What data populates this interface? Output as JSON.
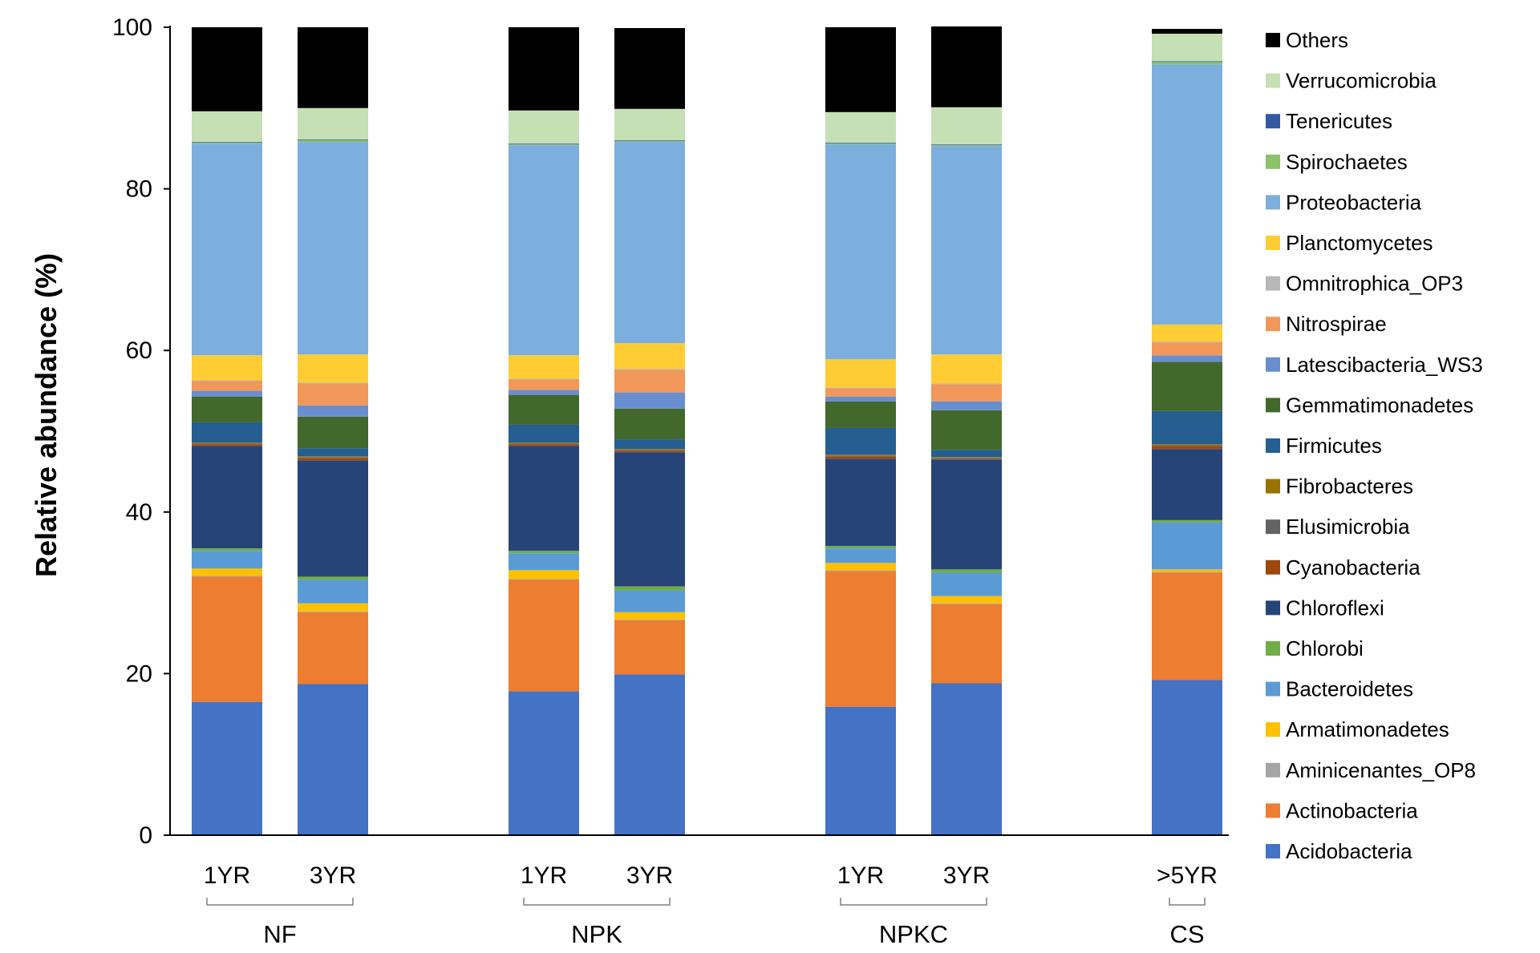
{
  "chart_data": {
    "type": "stacked-bar",
    "title": "",
    "xlabel": "",
    "ylabel": "Relative abundance (%)",
    "ylim": [
      0,
      100
    ],
    "yticks": [
      0,
      20,
      40,
      60,
      80,
      100
    ],
    "grid": false,
    "legend_position": "right",
    "categories": [
      "1YR",
      "3YR",
      "1YR",
      "3YR",
      "1YR",
      "3YR",
      ">5YR"
    ],
    "groups": [
      {
        "label": "NF",
        "members": [
          0,
          1
        ]
      },
      {
        "label": "NPK",
        "members": [
          2,
          3
        ]
      },
      {
        "label": "NPKC",
        "members": [
          4,
          5
        ]
      },
      {
        "label": "CS",
        "members": [
          6
        ]
      }
    ],
    "series": [
      {
        "name": "Acidobacteria",
        "color": "#4472C4",
        "values": [
          16.5,
          18.7,
          17.8,
          19.9,
          15.9,
          18.8,
          19.2
        ]
      },
      {
        "name": "Actinobacteria",
        "color": "#ED7D31",
        "values": [
          15.5,
          8.9,
          13.8,
          6.7,
          16.8,
          9.8,
          13.3
        ]
      },
      {
        "name": "Aminicenantes_OP8",
        "color": "#A5A5A5",
        "values": [
          0.1,
          0.1,
          0.1,
          0.1,
          0.1,
          0.1,
          0.1
        ]
      },
      {
        "name": "Armatimonadetes",
        "color": "#FFC000",
        "values": [
          0.9,
          1.0,
          1.1,
          0.9,
          0.9,
          0.9,
          0.3
        ]
      },
      {
        "name": "Bacteroidetes",
        "color": "#5B9BD5",
        "values": [
          2.2,
          2.9,
          2.1,
          2.7,
          1.8,
          2.9,
          5.8
        ]
      },
      {
        "name": "Chlorobi",
        "color": "#70AD47",
        "values": [
          0.3,
          0.4,
          0.3,
          0.5,
          0.3,
          0.4,
          0.3
        ]
      },
      {
        "name": "Chloroflexi",
        "color": "#264478",
        "values": [
          12.7,
          14.4,
          13.0,
          16.6,
          10.8,
          13.6,
          8.8
        ]
      },
      {
        "name": "Cyanobacteria",
        "color": "#9E480E",
        "values": [
          0.2,
          0.3,
          0.2,
          0.2,
          0.3,
          0.1,
          0.4
        ]
      },
      {
        "name": "Elusimicrobia",
        "color": "#636363",
        "values": [
          0.1,
          0.1,
          0.1,
          0.1,
          0.1,
          0.1,
          0.1
        ]
      },
      {
        "name": "Fibrobacteres",
        "color": "#997300",
        "values": [
          0.1,
          0.1,
          0.1,
          0.1,
          0.1,
          0.1,
          0.1
        ]
      },
      {
        "name": "Firmicutes",
        "color": "#255E91",
        "values": [
          2.5,
          1.0,
          2.2,
          1.2,
          3.3,
          0.9,
          4.1
        ]
      },
      {
        "name": "Gemmatimonadetes",
        "color": "#43682B",
        "values": [
          3.2,
          3.9,
          3.7,
          3.8,
          3.3,
          4.9,
          6.1
        ]
      },
      {
        "name": "Latescibacteria_WS3",
        "color": "#698ED0",
        "values": [
          0.7,
          1.4,
          0.6,
          2.0,
          0.6,
          1.1,
          0.8
        ]
      },
      {
        "name": "Nitrospirae",
        "color": "#F1975A",
        "values": [
          1.2,
          2.7,
          1.3,
          2.8,
          1.0,
          2.1,
          1.6
        ]
      },
      {
        "name": "Omnitrophica_OP3",
        "color": "#B7B7B7",
        "values": [
          0.1,
          0.1,
          0.1,
          0.1,
          0.1,
          0.1,
          0.1
        ]
      },
      {
        "name": "Planctomycetes",
        "color": "#FFCD33",
        "values": [
          3.1,
          3.5,
          2.9,
          3.2,
          3.5,
          3.6,
          2.1
        ]
      },
      {
        "name": "Proteobacteria",
        "color": "#7CAFDD",
        "values": [
          26.2,
          26.3,
          26.0,
          24.9,
          26.6,
          25.8,
          32.2
        ]
      },
      {
        "name": "Spirochaetes",
        "color": "#8CC168",
        "values": [
          0.1,
          0.2,
          0.1,
          0.1,
          0.1,
          0.1,
          0.3
        ]
      },
      {
        "name": "Tenericutes",
        "color": "#335AA1",
        "values": [
          0.1,
          0.1,
          0.1,
          0.1,
          0.1,
          0.1,
          0.1
        ]
      },
      {
        "name": "Verrucomicrobia",
        "color": "#C5E0B4",
        "values": [
          3.8,
          3.9,
          4.1,
          3.9,
          3.8,
          4.6,
          3.4
        ]
      },
      {
        "name": "Others",
        "color": "#000000",
        "values": [
          10.4,
          10.0,
          10.3,
          10.0,
          10.5,
          10.0,
          0.6
        ]
      }
    ]
  }
}
